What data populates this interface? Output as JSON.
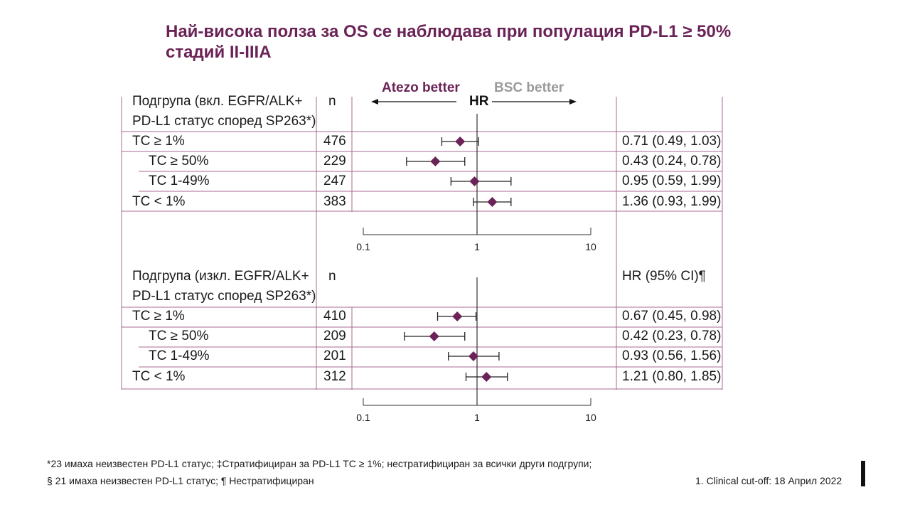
{
  "title": {
    "line1": "Най-висока полза за OS се наблюдава при популация PD-L1 ≥ 50%",
    "line2": "стадий II-IIIA"
  },
  "direction": {
    "left": "Atezo better",
    "center": "HR",
    "right": "BSC better"
  },
  "panel1": {
    "header_line1": "Подгрупа (вкл. EGFR/ALK+",
    "header_line2": "PD-L1 статус според SP263*)",
    "n_header": "n"
  },
  "panel2": {
    "header_line1": "Подгрупа (изкл. EGFR/ALK+",
    "header_line2": "PD-L1 статус според SP263*)",
    "n_header": "n",
    "ci_header": "HR (95% CI)¶"
  },
  "colors": {
    "accent": "#6b2357",
    "direction_right": "#9a9a9a",
    "grid": "#a56b93"
  },
  "chart_data": [
    {
      "type": "forest",
      "xscale": "log",
      "xlim": [
        0.1,
        10
      ],
      "xticks": [
        "0.1",
        "1",
        "10"
      ],
      "reference_line": 1,
      "rows": [
        {
          "label": "TC ≥ 1%",
          "indent": 0,
          "n": "476",
          "hr": 0.71,
          "lo": 0.49,
          "hi": 1.03,
          "ci_text": "0.71 (0.49, 1.03)"
        },
        {
          "label": "TC ≥ 50%",
          "indent": 1,
          "n": "229",
          "hr": 0.43,
          "lo": 0.24,
          "hi": 0.78,
          "ci_text": "0.43 (0.24, 0.78)"
        },
        {
          "label": "TC 1-49%",
          "indent": 1,
          "n": "247",
          "hr": 0.95,
          "lo": 0.59,
          "hi": 1.99,
          "ci_text": "0.95 (0.59, 1.99)"
        },
        {
          "label": "TC < 1%",
          "indent": 0,
          "n": "383",
          "hr": 1.36,
          "lo": 0.93,
          "hi": 1.99,
          "ci_text": "1.36 (0.93, 1.99)"
        }
      ]
    },
    {
      "type": "forest",
      "xscale": "log",
      "xlim": [
        0.1,
        10
      ],
      "xticks": [
        "0.1",
        "1",
        "10"
      ],
      "reference_line": 1,
      "rows": [
        {
          "label": "TC ≥ 1%",
          "indent": 0,
          "n": "410",
          "hr": 0.67,
          "lo": 0.45,
          "hi": 0.98,
          "ci_text": "0.67 (0.45, 0.98)"
        },
        {
          "label": "TC ≥ 50%",
          "indent": 1,
          "n": "209",
          "hr": 0.42,
          "lo": 0.23,
          "hi": 0.78,
          "ci_text": "0.42 (0.23, 0.78)"
        },
        {
          "label": "TC 1-49%",
          "indent": 1,
          "n": "201",
          "hr": 0.93,
          "lo": 0.56,
          "hi": 1.56,
          "ci_text": "0.93 (0.56, 1.56)"
        },
        {
          "label": "TC < 1%",
          "indent": 0,
          "n": "312",
          "hr": 1.21,
          "lo": 0.8,
          "hi": 1.85,
          "ci_text": "1.21 (0.80, 1.85)"
        }
      ]
    }
  ],
  "footnotes": {
    "line1": "*23 имаха неизвестен PD-L1 статус; ‡Стратифициран за PD-L1 TC ≥ 1%; нестратифициран за всички други подгрупи;",
    "line2": "§ 21 имаха неизвестен PD-L1 статус; ¶ Нестратифициран",
    "reference": "1.   Clinical cut-off: 18 Април 2022"
  }
}
